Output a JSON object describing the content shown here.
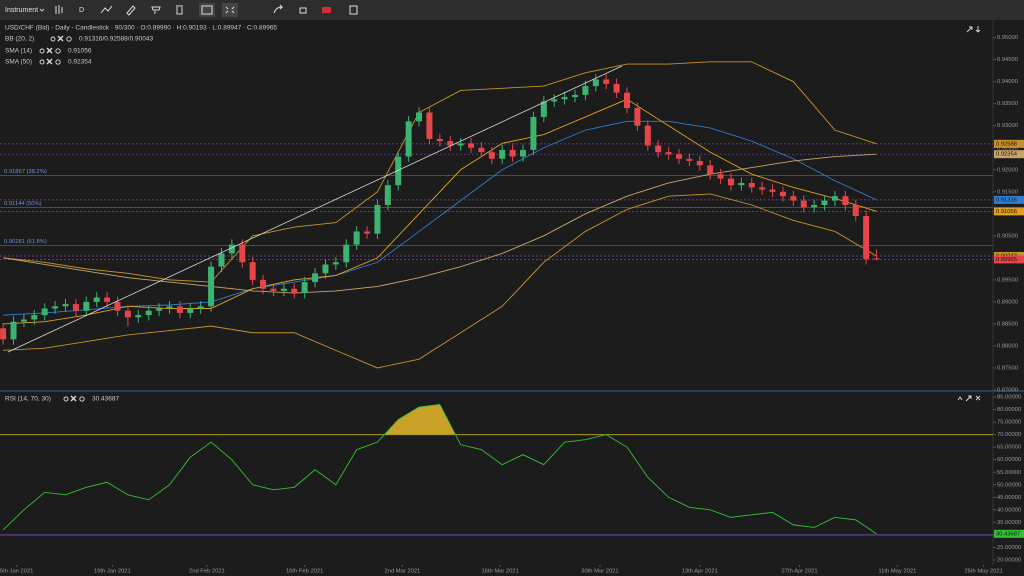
{
  "toolbar": {
    "instrument": "Instrument",
    "interval": "D"
  },
  "chart": {
    "type": "candlestick",
    "title": "USD/CHF (Bid) - Daily - Candlestick · 90/300 · O:0.89990 · H:0.90193 · L:0.89947 · C:0.89965",
    "up_color": "#3cb371",
    "down_color": "#e8454a",
    "ylim": [
      0.87,
      0.954
    ],
    "yticks": [
      {
        "value": 0.87,
        "label": "0.87000"
      },
      {
        "value": 0.875,
        "label": "0.87500"
      },
      {
        "value": 0.88,
        "label": "0.88000"
      },
      {
        "value": 0.885,
        "label": "0.88500"
      },
      {
        "value": 0.89,
        "label": "0.89000"
      },
      {
        "value": 0.895,
        "label": "0.89500"
      },
      {
        "value": 0.9,
        "label": "0.90000"
      },
      {
        "value": 0.905,
        "label": "0.90500"
      },
      {
        "value": 0.91,
        "label": "0.91000"
      },
      {
        "value": 0.915,
        "label": "0.91500"
      },
      {
        "value": 0.92,
        "label": "0.92000"
      },
      {
        "value": 0.925,
        "label": "0.92500"
      },
      {
        "value": 0.93,
        "label": "0.93000"
      },
      {
        "value": 0.935,
        "label": "0.93500"
      },
      {
        "value": 0.94,
        "label": "0.94000"
      },
      {
        "value": 0.945,
        "label": "0.94500"
      },
      {
        "value": 0.95,
        "label": "0.95000"
      }
    ],
    "xlim": [
      -0.3,
      95.2
    ],
    "xticks": [
      {
        "value": 1.3,
        "label": "5th Jan 2021"
      },
      {
        "value": 10.5,
        "label": "19th Jan 2021"
      },
      {
        "value": 19.6,
        "label": "2nd Feb 2021"
      },
      {
        "value": 29.0,
        "label": "16th Feb 2021"
      },
      {
        "value": 38.4,
        "label": "2nd Mar 2021"
      },
      {
        "value": 47.8,
        "label": "16th Mar 2021"
      },
      {
        "value": 57.4,
        "label": "30th Mar 2021"
      },
      {
        "value": 67.0,
        "label": "13th Apr 2021"
      },
      {
        "value": 76.6,
        "label": "27th Apr 2021"
      },
      {
        "value": 86.0,
        "label": "11th May 2021"
      },
      {
        "value": 94.3,
        "label": "25th May 2021"
      }
    ],
    "candles": [
      [
        0.884,
        0.8852,
        0.8803,
        0.8815
      ],
      [
        0.8815,
        0.8867,
        0.8803,
        0.8855
      ],
      [
        0.8855,
        0.8872,
        0.8843,
        0.886
      ],
      [
        0.886,
        0.8882,
        0.8848,
        0.887
      ],
      [
        0.887,
        0.8897,
        0.8858,
        0.8885
      ],
      [
        0.8885,
        0.8902,
        0.8873,
        0.889
      ],
      [
        0.889,
        0.8907,
        0.8878,
        0.8895
      ],
      [
        0.8895,
        0.8907,
        0.8868,
        0.888
      ],
      [
        0.888,
        0.8912,
        0.8868,
        0.89
      ],
      [
        0.89,
        0.8922,
        0.8888,
        0.891
      ],
      [
        0.891,
        0.8922,
        0.8888,
        0.89
      ],
      [
        0.89,
        0.8912,
        0.8868,
        0.888
      ],
      [
        0.888,
        0.8892,
        0.8845,
        0.8865
      ],
      [
        0.8865,
        0.8882,
        0.8853,
        0.887
      ],
      [
        0.887,
        0.8892,
        0.8858,
        0.888
      ],
      [
        0.888,
        0.8897,
        0.8868,
        0.8885
      ],
      [
        0.8885,
        0.8902,
        0.8873,
        0.889
      ],
      [
        0.889,
        0.8902,
        0.8863,
        0.8875
      ],
      [
        0.8875,
        0.8897,
        0.8863,
        0.8885
      ],
      [
        0.8885,
        0.8902,
        0.8873,
        0.889
      ],
      [
        0.889,
        0.8992,
        0.8878,
        0.898
      ],
      [
        0.898,
        0.9022,
        0.8968,
        0.901
      ],
      [
        0.901,
        0.9042,
        0.8998,
        0.903
      ],
      [
        0.903,
        0.9042,
        0.8978,
        0.899
      ],
      [
        0.899,
        0.9002,
        0.8938,
        0.895
      ],
      [
        0.895,
        0.8962,
        0.8918,
        0.893
      ],
      [
        0.893,
        0.8942,
        0.8913,
        0.8925
      ],
      [
        0.8925,
        0.8942,
        0.8913,
        0.893
      ],
      [
        0.893,
        0.8942,
        0.8908,
        0.892
      ],
      [
        0.892,
        0.8957,
        0.8908,
        0.8945
      ],
      [
        0.8945,
        0.8977,
        0.8933,
        0.8965
      ],
      [
        0.8965,
        0.8997,
        0.8953,
        0.8985
      ],
      [
        0.8985,
        0.9002,
        0.8973,
        0.899
      ],
      [
        0.899,
        0.9042,
        0.8978,
        0.903
      ],
      [
        0.903,
        0.9072,
        0.9018,
        0.906
      ],
      [
        0.906,
        0.9072,
        0.9043,
        0.9055
      ],
      [
        0.9055,
        0.9132,
        0.9043,
        0.912
      ],
      [
        0.912,
        0.9177,
        0.9108,
        0.9165
      ],
      [
        0.9165,
        0.9242,
        0.9153,
        0.923
      ],
      [
        0.923,
        0.9322,
        0.9218,
        0.931
      ],
      [
        0.931,
        0.9342,
        0.9298,
        0.933
      ],
      [
        0.933,
        0.9342,
        0.9258,
        0.927
      ],
      [
        0.927,
        0.9282,
        0.9253,
        0.9265
      ],
      [
        0.9265,
        0.9277,
        0.9243,
        0.9255
      ],
      [
        0.9255,
        0.9272,
        0.9243,
        0.926
      ],
      [
        0.926,
        0.9272,
        0.9238,
        0.925
      ],
      [
        0.925,
        0.9262,
        0.9228,
        0.924
      ],
      [
        0.924,
        0.9252,
        0.9213,
        0.9225
      ],
      [
        0.9225,
        0.9257,
        0.9213,
        0.9245
      ],
      [
        0.9245,
        0.9257,
        0.9218,
        0.923
      ],
      [
        0.923,
        0.9257,
        0.9218,
        0.9245
      ],
      [
        0.9245,
        0.9332,
        0.9233,
        0.932
      ],
      [
        0.932,
        0.9367,
        0.9308,
        0.9355
      ],
      [
        0.9355,
        0.9372,
        0.9343,
        0.936
      ],
      [
        0.936,
        0.9377,
        0.9348,
        0.9365
      ],
      [
        0.9365,
        0.9382,
        0.9353,
        0.937
      ],
      [
        0.937,
        0.9402,
        0.9358,
        0.939
      ],
      [
        0.939,
        0.9417,
        0.9378,
        0.9405
      ],
      [
        0.9405,
        0.9417,
        0.9383,
        0.9395
      ],
      [
        0.9395,
        0.9407,
        0.9363,
        0.9375
      ],
      [
        0.9375,
        0.9387,
        0.9328,
        0.934
      ],
      [
        0.934,
        0.9352,
        0.9288,
        0.93
      ],
      [
        0.93,
        0.9312,
        0.9243,
        0.9255
      ],
      [
        0.9255,
        0.9267,
        0.9228,
        0.924
      ],
      [
        0.924,
        0.9252,
        0.9223,
        0.9235
      ],
      [
        0.9235,
        0.9247,
        0.9213,
        0.9225
      ],
      [
        0.9225,
        0.9237,
        0.9208,
        0.922
      ],
      [
        0.922,
        0.9232,
        0.9198,
        0.921
      ],
      [
        0.921,
        0.9222,
        0.9178,
        0.919
      ],
      [
        0.919,
        0.9202,
        0.9168,
        0.918
      ],
      [
        0.918,
        0.9192,
        0.9153,
        0.9165
      ],
      [
        0.9165,
        0.9182,
        0.9153,
        0.917
      ],
      [
        0.917,
        0.9182,
        0.9148,
        0.916
      ],
      [
        0.916,
        0.9172,
        0.9143,
        0.9155
      ],
      [
        0.9155,
        0.9167,
        0.9138,
        0.915
      ],
      [
        0.915,
        0.9162,
        0.9128,
        0.914
      ],
      [
        0.914,
        0.9152,
        0.9118,
        0.913
      ],
      [
        0.913,
        0.9142,
        0.9103,
        0.9115
      ],
      [
        0.9115,
        0.9132,
        0.9103,
        0.912
      ],
      [
        0.912,
        0.9142,
        0.9108,
        0.913
      ],
      [
        0.913,
        0.9152,
        0.9118,
        0.914
      ],
      [
        0.914,
        0.9152,
        0.9108,
        0.912
      ],
      [
        0.912,
        0.9132,
        0.9083,
        0.9095
      ],
      [
        0.9095,
        0.9107,
        0.8985,
        0.8997
      ],
      [
        0.8999,
        0.90193,
        0.89947,
        0.89965
      ]
    ],
    "legend": [
      {
        "name": "BB (20, 2)",
        "value": "0.91316/0.92588/0.90043"
      },
      {
        "name": "SMA (14)"
      },
      {
        "name": "SMA (50)"
      }
    ],
    "lines_x": [
      0,
      4,
      8,
      12,
      16,
      20,
      24,
      28,
      32,
      36,
      40,
      44,
      48,
      52,
      56,
      60,
      64,
      68,
      72,
      76,
      80,
      84
    ],
    "lines": [
      {
        "color": "#c8922a",
        "values": [
          0.9,
          0.899,
          0.8975,
          0.8965,
          0.895,
          0.8945,
          0.905,
          0.907,
          0.908,
          0.915,
          0.933,
          0.938,
          0.9385,
          0.939,
          0.942,
          0.944,
          0.944,
          0.9445,
          0.9445,
          0.94,
          0.929,
          0.92588
        ]
      },
      {
        "color": "#2f7fd0",
        "values": [
          0.887,
          0.8875,
          0.8882,
          0.889,
          0.8893,
          0.89,
          0.893,
          0.8945,
          0.896,
          0.899,
          0.906,
          0.913,
          0.92,
          0.925,
          0.929,
          0.931,
          0.931,
          0.9295,
          0.9265,
          0.9225,
          0.9175,
          0.91316
        ]
      },
      {
        "color": "#c8922a",
        "values": [
          0.879,
          0.8795,
          0.881,
          0.8825,
          0.8835,
          0.8845,
          0.883,
          0.883,
          0.879,
          0.875,
          0.877,
          0.883,
          0.889,
          0.899,
          0.906,
          0.911,
          0.914,
          0.9145,
          0.912,
          0.9085,
          0.906,
          0.90043
        ]
      },
      {
        "color": "#e0a020",
        "values": [
          0.885,
          0.8855,
          0.887,
          0.889,
          0.8885,
          0.8885,
          0.893,
          0.895,
          0.896,
          0.9,
          0.91,
          0.92,
          0.926,
          0.928,
          0.932,
          0.936,
          0.93,
          0.924,
          0.919,
          0.916,
          0.9135,
          0.91056
        ]
      },
      {
        "color": "#c9a46a",
        "values": [
          0.9,
          0.8985,
          0.897,
          0.8955,
          0.8945,
          0.8935,
          0.8925,
          0.892,
          0.8925,
          0.8935,
          0.8955,
          0.898,
          0.901,
          0.905,
          0.91,
          0.914,
          0.917,
          0.919,
          0.9205,
          0.922,
          0.923,
          0.92354
        ]
      }
    ],
    "fib_levels": [
      {
        "value": 0.91867,
        "label": "0.91867 (38.2%)"
      },
      {
        "value": 0.91144,
        "label": "0.91144 (50%)"
      },
      {
        "value": 0.90281,
        "label": "0.90281 (61.8%)"
      }
    ]
  },
  "rsi": {
    "type": "line",
    "name": "RSI (14, 70, 30)",
    "color": "#35c035",
    "x": [
      0,
      2,
      4,
      6,
      8,
      10,
      12,
      14,
      16,
      18,
      20,
      22,
      24,
      26,
      28,
      30,
      32,
      34,
      36,
      38,
      40,
      42,
      44,
      46,
      48,
      50,
      52,
      54,
      56,
      58,
      60,
      62,
      64,
      66,
      68,
      70,
      72,
      74,
      76,
      78,
      80,
      82,
      84
    ],
    "values": [
      32,
      40,
      47,
      46,
      49,
      51,
      46,
      44,
      50,
      61,
      67,
      60,
      50,
      48,
      49,
      56,
      50,
      64,
      67,
      76,
      81,
      82,
      66,
      64,
      58,
      62,
      58,
      67,
      68,
      70,
      65,
      53,
      45,
      41,
      40,
      37,
      38,
      39,
      34,
      33,
      37,
      36,
      30.43687
    ],
    "upper": 70,
    "lower": 30,
    "ylim": [
      18,
      87
    ],
    "yticks": [
      {
        "value": 20,
        "label": "20.00000"
      },
      {
        "value": 25,
        "label": "25.00000"
      },
      {
        "value": 30,
        "label": "30.00000"
      },
      {
        "value": 35,
        "label": "35.00000"
      },
      {
        "value": 40,
        "label": "40.00000"
      },
      {
        "value": 45,
        "label": "45.00000"
      },
      {
        "value": 50,
        "label": "50.00000"
      },
      {
        "value": 55,
        "label": "55.00000"
      },
      {
        "value": 60,
        "label": "60.00000"
      },
      {
        "value": 65,
        "label": "65.00000"
      },
      {
        "value": 70,
        "label": "70.00000"
      },
      {
        "value": 75,
        "label": "75.00000"
      },
      {
        "value": 80,
        "label": "80.00000"
      },
      {
        "value": 85,
        "label": "85.00000"
      }
    ]
  }
}
